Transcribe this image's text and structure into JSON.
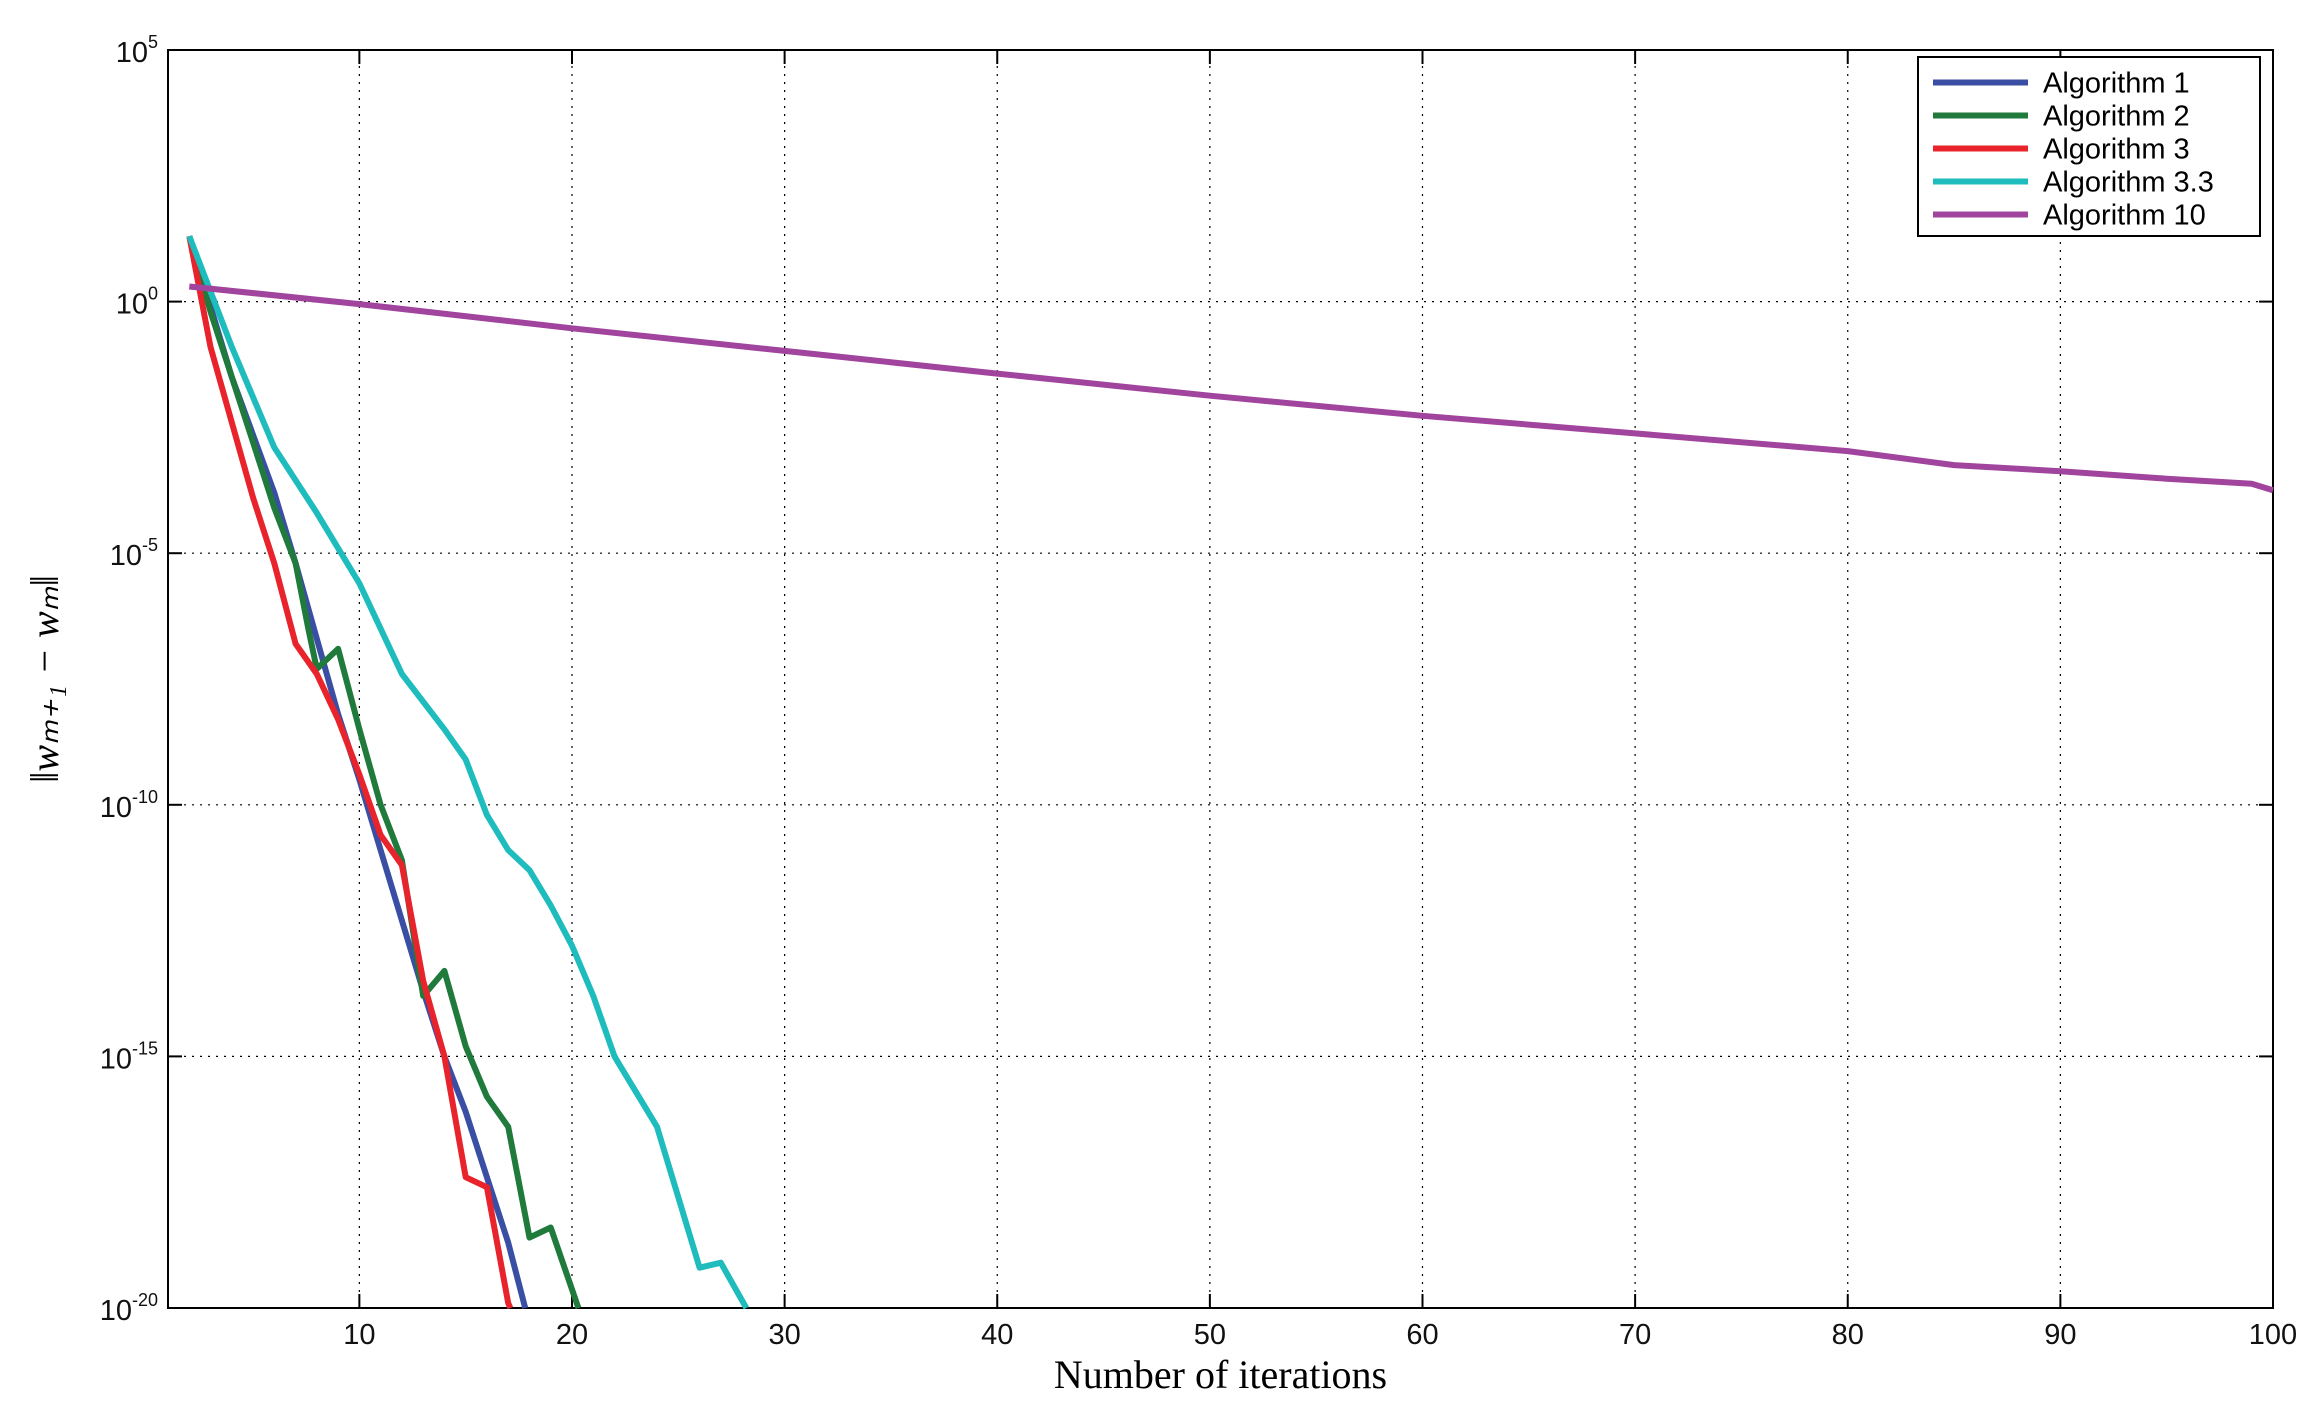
{
  "chart_data": {
    "type": "line",
    "title": "",
    "xlabel": "Number of iterations",
    "ylabel": "‖wₘ₊₁ − wₘ‖",
    "y_scale": "log",
    "xlim": [
      1,
      100
    ],
    "ylim": [
      1e-20,
      100000.0
    ],
    "grid": true,
    "legend_position": "top-right",
    "x_ticks": [
      10,
      20,
      30,
      40,
      50,
      60,
      70,
      80,
      90,
      100
    ],
    "y_ticks": [
      {
        "exp": -20,
        "base": "10",
        "sup": "-20"
      },
      {
        "exp": -15,
        "base": "10",
        "sup": "-15"
      },
      {
        "exp": -10,
        "base": "10",
        "sup": "-10"
      },
      {
        "exp": -5,
        "base": "10",
        "sup": "-5"
      },
      {
        "exp": 0,
        "base": "10",
        "sup": "0"
      },
      {
        "exp": 5,
        "base": "10",
        "sup": "5"
      }
    ],
    "series": [
      {
        "name": "Algorithm 1",
        "color": "#3a4ea3",
        "points": [
          [
            2,
            1.3
          ],
          [
            4,
            -1.5
          ],
          [
            6,
            -3.8
          ],
          [
            7,
            -5.2
          ],
          [
            8,
            -6.7
          ],
          [
            9,
            -8.2
          ],
          [
            10,
            -9.5
          ],
          [
            11,
            -10.9
          ],
          [
            12,
            -12.3
          ],
          [
            13,
            -13.7
          ],
          [
            14,
            -15.0
          ],
          [
            15,
            -16.1
          ],
          [
            16,
            -17.4
          ],
          [
            17,
            -18.7
          ],
          [
            17.8,
            -20
          ]
        ]
      },
      {
        "name": "Algorithm 2",
        "color": "#1f7a3c",
        "points": [
          [
            2,
            1.3
          ],
          [
            3,
            -0.2
          ],
          [
            4,
            -1.5
          ],
          [
            5,
            -2.8
          ],
          [
            6,
            -4.1
          ],
          [
            7,
            -5.2
          ],
          [
            7.6,
            -6.5
          ],
          [
            8,
            -7.3
          ],
          [
            9,
            -6.9
          ],
          [
            10,
            -8.5
          ],
          [
            11,
            -10.0
          ],
          [
            12,
            -11.1
          ],
          [
            13,
            -13.8
          ],
          [
            14,
            -13.3
          ],
          [
            15,
            -14.8
          ],
          [
            16,
            -15.8
          ],
          [
            17,
            -16.4
          ],
          [
            18,
            -18.6
          ],
          [
            19,
            -18.4
          ],
          [
            20.3,
            -20
          ]
        ]
      },
      {
        "name": "Algorithm 3",
        "color": "#e8232b",
        "points": [
          [
            2,
            1.3
          ],
          [
            3,
            -0.9
          ],
          [
            4,
            -2.4
          ],
          [
            5,
            -3.9
          ],
          [
            6,
            -5.2
          ],
          [
            7,
            -6.8
          ],
          [
            8,
            -7.4
          ],
          [
            9,
            -8.3
          ],
          [
            10,
            -9.4
          ],
          [
            11,
            -10.6
          ],
          [
            12,
            -11.2
          ],
          [
            13,
            -13.5
          ],
          [
            14,
            -15.0
          ],
          [
            15,
            -17.4
          ],
          [
            16,
            -17.6
          ],
          [
            17,
            -19.9
          ],
          [
            17.1,
            -20
          ]
        ]
      },
      {
        "name": "Algorithm 3.3",
        "color": "#1fbcbe",
        "points": [
          [
            2,
            1.3
          ],
          [
            4,
            -0.9
          ],
          [
            6,
            -2.9
          ],
          [
            8,
            -4.2
          ],
          [
            10,
            -5.6
          ],
          [
            12,
            -7.4
          ],
          [
            14,
            -8.5
          ],
          [
            15,
            -9.1
          ],
          [
            16,
            -10.2
          ],
          [
            17,
            -10.9
          ],
          [
            18,
            -11.3
          ],
          [
            19,
            -12.0
          ],
          [
            20,
            -12.8
          ],
          [
            21,
            -13.8
          ],
          [
            22,
            -15.0
          ],
          [
            24,
            -16.4
          ],
          [
            25,
            -17.8
          ],
          [
            26,
            -19.2
          ],
          [
            27,
            -19.1
          ],
          [
            28.2,
            -20
          ]
        ]
      },
      {
        "name": "Algorithm 10",
        "color": "#a0449e",
        "points": [
          [
            2,
            0.3
          ],
          [
            10,
            -0.05
          ],
          [
            20,
            -0.53
          ],
          [
            30,
            -0.98
          ],
          [
            40,
            -1.43
          ],
          [
            50,
            -1.87
          ],
          [
            60,
            -2.27
          ],
          [
            70,
            -2.62
          ],
          [
            80,
            -2.97
          ],
          [
            85,
            -3.25
          ],
          [
            90,
            -3.37
          ],
          [
            95,
            -3.52
          ],
          [
            99,
            -3.62
          ],
          [
            100,
            -3.75
          ]
        ]
      }
    ]
  }
}
